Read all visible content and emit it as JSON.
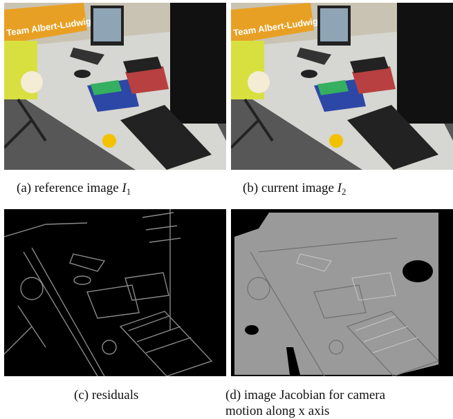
{
  "captions": {
    "a": {
      "label": "(a) reference image",
      "var": "I",
      "sub": "1"
    },
    "b": {
      "label": "(b) current image",
      "var": "I",
      "sub": "2"
    },
    "c": {
      "label": "(c) residuals"
    },
    "d": {
      "line1": "(d) image Jacobian for camera",
      "line2": "motion along x axis"
    }
  },
  "banner_text": "Team Albert-Ludwigs",
  "colors": {
    "banner": "#e8a024",
    "wall": "#c9c3b3",
    "desk": "#d6d6d2",
    "floor": "#575757",
    "jacobian_gray": "#9a9a9a"
  }
}
